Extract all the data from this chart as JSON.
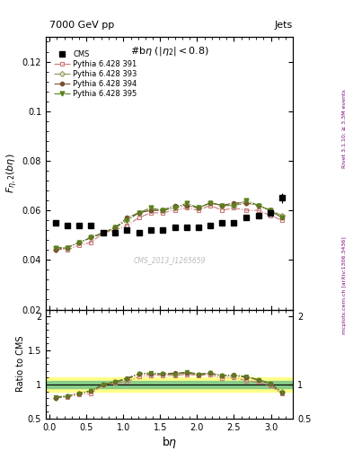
{
  "title_left": "7000 GeV pp",
  "title_right": "Jets",
  "annotation": "#bη (|η_2|<0.8)",
  "watermark": "CMS_2013_I1265659",
  "right_label": "mcplots.cern.ch [arXiv:1306.3436]",
  "right_label2": "Rivet 3.1.10; ≥ 3.3M events",
  "cms_x": [
    0.08,
    0.24,
    0.4,
    0.56,
    0.73,
    0.89,
    1.05,
    1.21,
    1.37,
    1.53,
    1.7,
    1.86,
    2.02,
    2.18,
    2.34,
    2.5,
    2.67,
    2.83,
    2.99,
    3.15
  ],
  "cms_y": [
    0.055,
    0.054,
    0.054,
    0.054,
    0.051,
    0.051,
    0.052,
    0.051,
    0.052,
    0.052,
    0.053,
    0.053,
    0.053,
    0.054,
    0.055,
    0.055,
    0.057,
    0.058,
    0.059,
    0.065
  ],
  "cms_yerr": [
    0.001,
    0.001,
    0.001,
    0.001,
    0.001,
    0.001,
    0.001,
    0.001,
    0.001,
    0.001,
    0.001,
    0.001,
    0.001,
    0.001,
    0.001,
    0.001,
    0.001,
    0.001,
    0.001,
    0.002
  ],
  "p391_x": [
    0.08,
    0.24,
    0.4,
    0.56,
    0.73,
    0.89,
    1.05,
    1.21,
    1.37,
    1.53,
    1.7,
    1.86,
    2.02,
    2.18,
    2.34,
    2.5,
    2.67,
    2.83,
    2.99,
    3.15
  ],
  "p391_y": [
    0.045,
    0.044,
    0.046,
    0.047,
    0.051,
    0.052,
    0.054,
    0.057,
    0.059,
    0.059,
    0.06,
    0.061,
    0.06,
    0.062,
    0.06,
    0.061,
    0.06,
    0.06,
    0.058,
    0.056
  ],
  "p391_color": "#c87878",
  "p391_label": "Pythia 6.428 391",
  "p393_x": [
    0.08,
    0.24,
    0.4,
    0.56,
    0.73,
    0.89,
    1.05,
    1.21,
    1.37,
    1.53,
    1.7,
    1.86,
    2.02,
    2.18,
    2.34,
    2.5,
    2.67,
    2.83,
    2.99,
    3.15
  ],
  "p393_y": [
    0.044,
    0.045,
    0.047,
    0.049,
    0.051,
    0.053,
    0.056,
    0.059,
    0.06,
    0.06,
    0.061,
    0.062,
    0.061,
    0.063,
    0.062,
    0.062,
    0.063,
    0.062,
    0.06,
    0.058
  ],
  "p393_color": "#909050",
  "p393_label": "Pythia 6.428 393",
  "p394_x": [
    0.08,
    0.24,
    0.4,
    0.56,
    0.73,
    0.89,
    1.05,
    1.21,
    1.37,
    1.53,
    1.7,
    1.86,
    2.02,
    2.18,
    2.34,
    2.5,
    2.67,
    2.83,
    2.99,
    3.15
  ],
  "p394_y": [
    0.044,
    0.045,
    0.047,
    0.049,
    0.051,
    0.053,
    0.057,
    0.059,
    0.06,
    0.06,
    0.062,
    0.062,
    0.061,
    0.063,
    0.062,
    0.063,
    0.063,
    0.062,
    0.06,
    0.057
  ],
  "p394_color": "#7a5230",
  "p394_label": "Pythia 6.428 394",
  "p395_x": [
    0.08,
    0.24,
    0.4,
    0.56,
    0.73,
    0.89,
    1.05,
    1.21,
    1.37,
    1.53,
    1.7,
    1.86,
    2.02,
    2.18,
    2.34,
    2.5,
    2.67,
    2.83,
    2.99,
    3.15
  ],
  "p395_y": [
    0.045,
    0.045,
    0.047,
    0.049,
    0.051,
    0.053,
    0.056,
    0.059,
    0.061,
    0.06,
    0.061,
    0.063,
    0.061,
    0.063,
    0.062,
    0.062,
    0.064,
    0.062,
    0.06,
    0.057
  ],
  "p395_color": "#5a8020",
  "p395_label": "Pythia 6.428 395",
  "ylim_main": [
    0.02,
    0.13
  ],
  "ylim_ratio": [
    0.5,
    2.1
  ],
  "xlim": [
    -0.05,
    3.3
  ],
  "ratio_band_inner": 0.05,
  "ratio_band_outer": 0.1
}
